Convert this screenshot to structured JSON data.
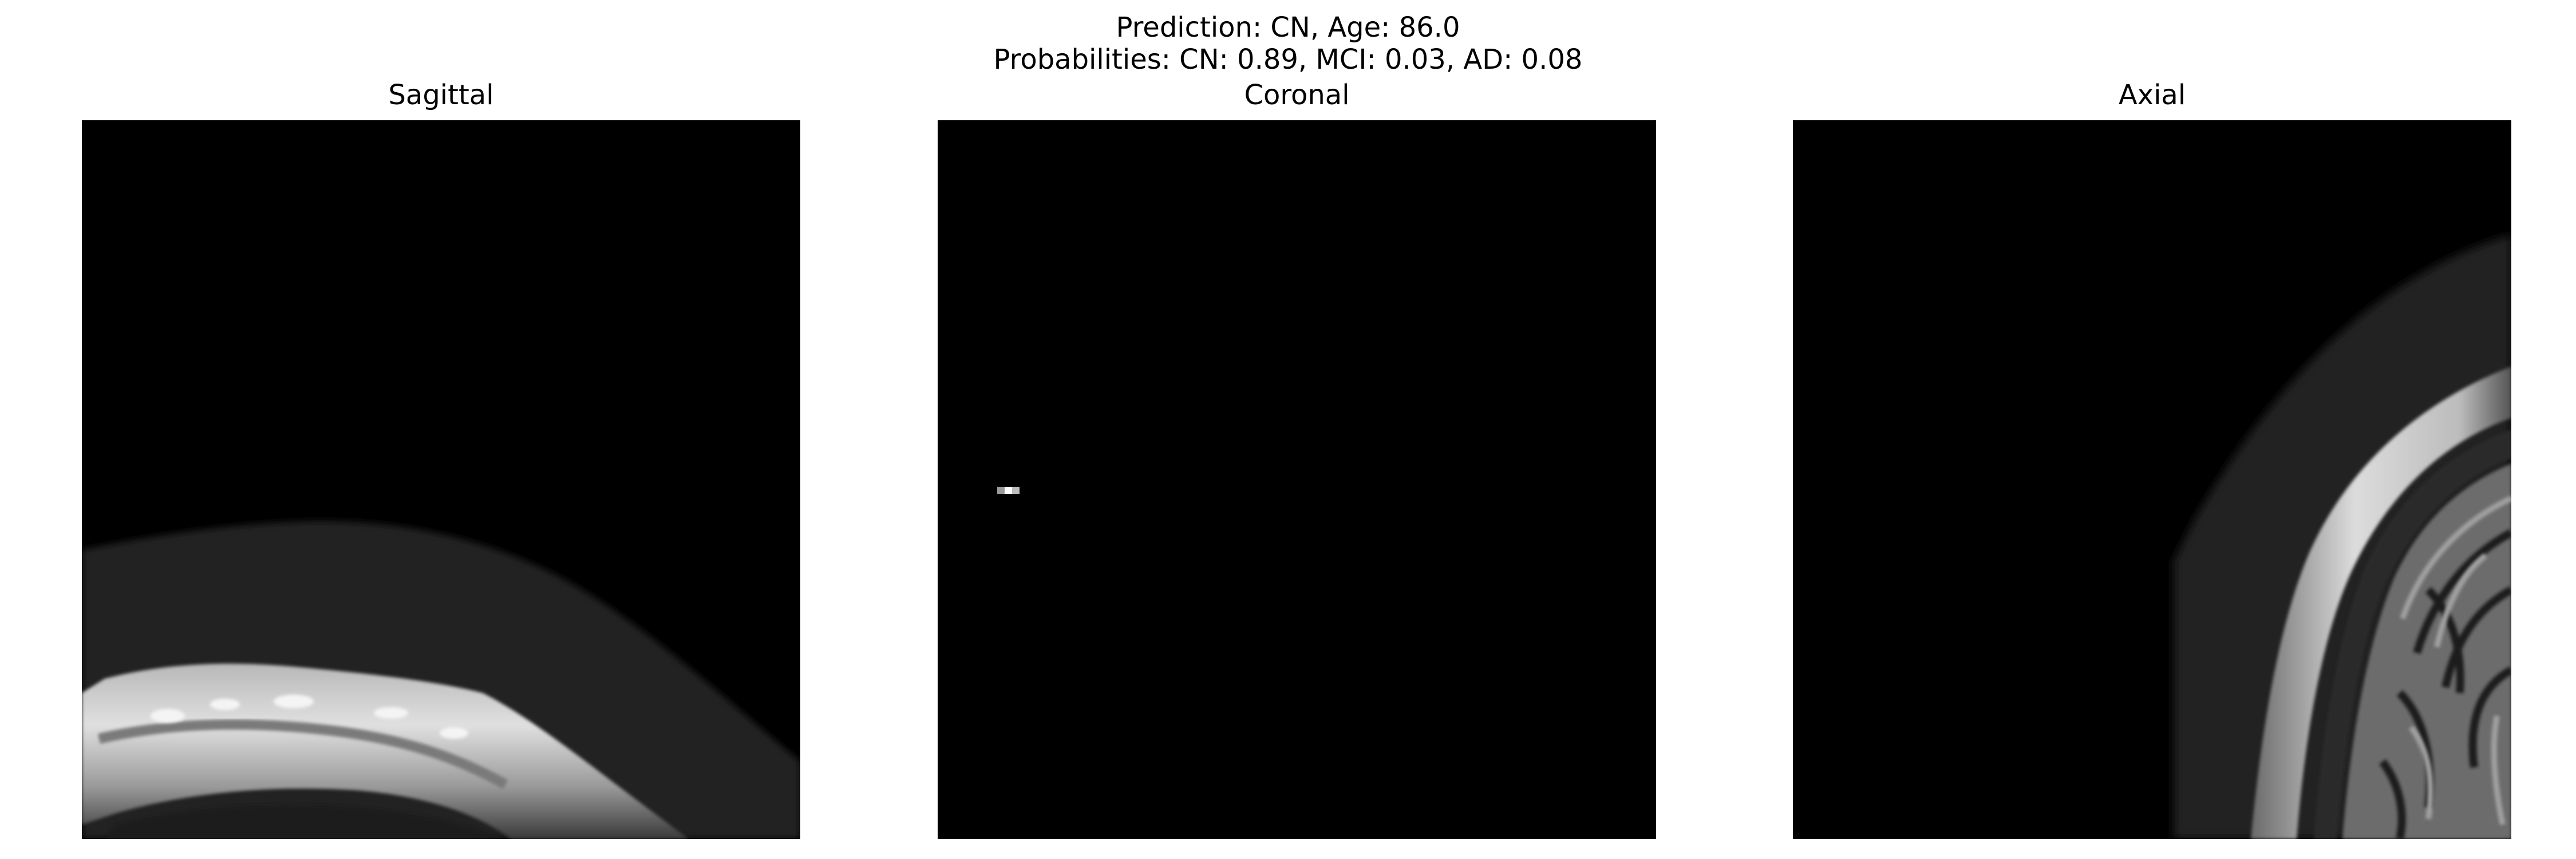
{
  "figure": {
    "suptitle_line1": "Prediction: CN, Age: 86.0",
    "suptitle_line2": "Probabilities: CN: 0.89, MCI: 0.03, AD: 0.08"
  },
  "panels": [
    {
      "title": "Sagittal"
    },
    {
      "title": "Coronal"
    },
    {
      "title": "Axial"
    }
  ],
  "colors": {
    "background": "#ffffff",
    "image_background": "#000000",
    "text": "#000000"
  }
}
